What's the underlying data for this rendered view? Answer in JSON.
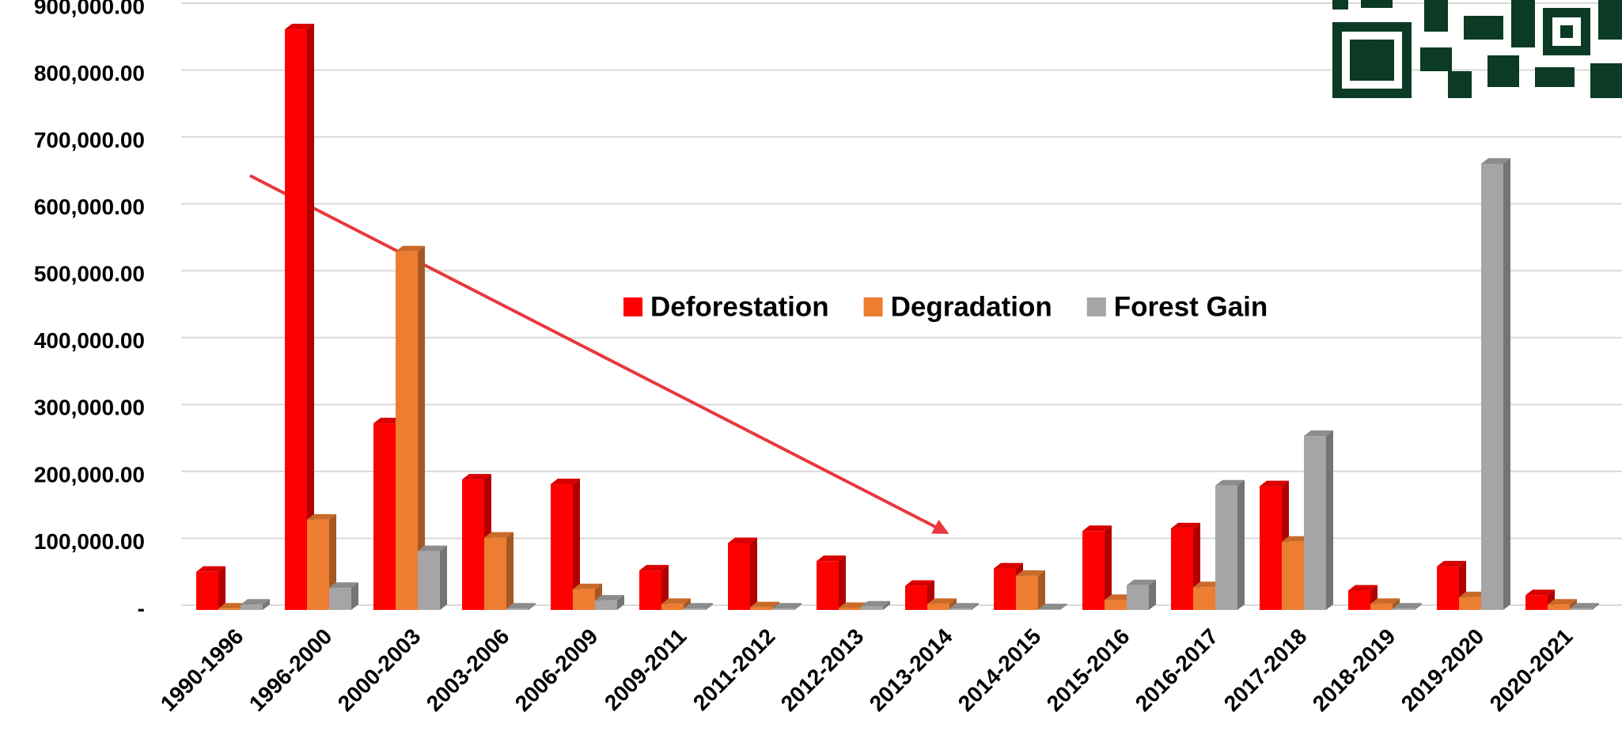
{
  "chart_data": {
    "type": "bar",
    "categories": [
      "1990-1996",
      "1996-2000",
      "2000-2003",
      "2003-2006",
      "2006-2009",
      "2009-2011",
      "2011-2012",
      "2012-2013",
      "2013-2014",
      "2014-2015",
      "2015-2016",
      "2016-2017",
      "2017-2018",
      "2018-2019",
      "2019-2020",
      "2020-2021"
    ],
    "series": [
      {
        "name": "Deforestation",
        "color": "#ff0000",
        "values": [
          57000,
          868000,
          279000,
          195000,
          188000,
          59000,
          100000,
          73000,
          36000,
          62000,
          118000,
          122000,
          185000,
          29000,
          65000,
          22000
        ]
      },
      {
        "name": "Degradation",
        "color": "#ed7d31",
        "values": [
          2000,
          135000,
          536000,
          108000,
          31000,
          9000,
          4000,
          3000,
          9000,
          51000,
          15000,
          34000,
          102000,
          9000,
          19000,
          8000
        ]
      },
      {
        "name": "Forest Gain",
        "color": "#a5a5a5",
        "values": [
          8000,
          33000,
          88000,
          2000,
          14000,
          2000,
          2000,
          5000,
          2000,
          1000,
          37000,
          186000,
          260000,
          2000,
          667000,
          2000
        ]
      }
    ],
    "ylim": [
      0,
      900000
    ],
    "yticks": [
      {
        "value": 0,
        "label": "-"
      },
      {
        "value": 100000,
        "label": "100,000.00"
      },
      {
        "value": 200000,
        "label": "200,000.00"
      },
      {
        "value": 300000,
        "label": "300,000.00"
      },
      {
        "value": 400000,
        "label": "400,000.00"
      },
      {
        "value": 500000,
        "label": "500,000.00"
      },
      {
        "value": 600000,
        "label": "600,000.00"
      },
      {
        "value": 700000,
        "label": "700,000.00"
      },
      {
        "value": 800000,
        "label": "800,000.00"
      },
      {
        "value": 900000,
        "label": "900,000.00"
      }
    ],
    "grid": true,
    "legend": "center"
  }
}
